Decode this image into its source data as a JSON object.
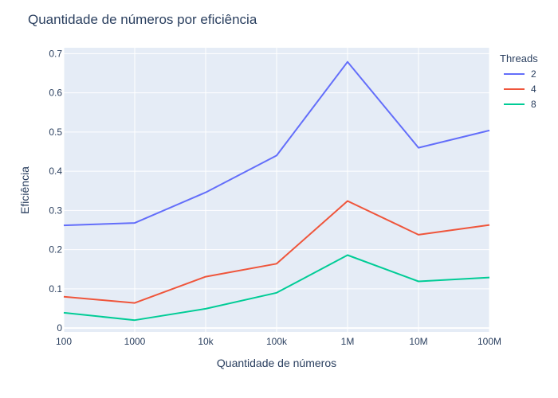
{
  "chart_data": {
    "type": "line",
    "title": "Quantidade de números por eficiência",
    "xlabel": "Quantidade de números",
    "ylabel": "Eficiência",
    "categories": [
      "100",
      "1000",
      "10k",
      "100k",
      "1M",
      "10M",
      "100M"
    ],
    "x_scale": "log",
    "x_values": [
      100,
      1000,
      10000,
      100000,
      1000000,
      10000000,
      100000000
    ],
    "ylim": [
      -0.01,
      0.715
    ],
    "y_ticks": [
      0,
      0.1,
      0.2,
      0.3,
      0.4,
      0.5,
      0.6,
      0.7
    ],
    "y_tick_labels": [
      "0",
      "0.1",
      "0.2",
      "0.3",
      "0.4",
      "0.5",
      "0.6",
      "0.7"
    ],
    "grid": true,
    "legend": {
      "title": "Threads",
      "placement": "top-right"
    },
    "plot_background": "#e5ecf6",
    "series": [
      {
        "name": "2",
        "color": "#636efa",
        "values": [
          0.262,
          0.268,
          0.346,
          0.44,
          0.679,
          0.46,
          0.504
        ]
      },
      {
        "name": "4",
        "color": "#ef553b",
        "values": [
          0.08,
          0.064,
          0.131,
          0.164,
          0.324,
          0.238,
          0.263
        ]
      },
      {
        "name": "8",
        "color": "#00cc96",
        "values": [
          0.039,
          0.02,
          0.049,
          0.09,
          0.186,
          0.119,
          0.129
        ]
      }
    ]
  }
}
